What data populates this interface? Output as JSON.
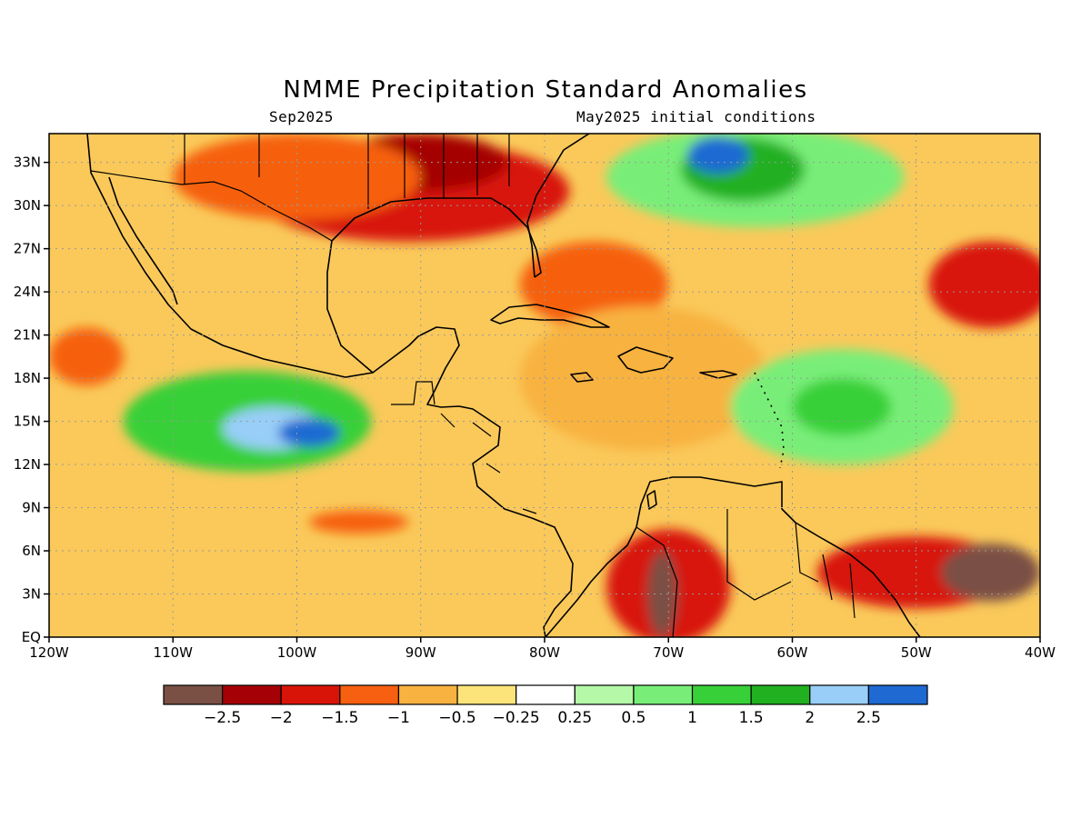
{
  "title": "NMME Precipitation Standard Anomalies",
  "subtitle_left": "Sep2025",
  "subtitle_right": "May2025 initial conditions",
  "map": {
    "lon_range": [
      -120,
      -40
    ],
    "lat_range": [
      0,
      35
    ],
    "lon_ticks": [
      {
        "value": -120,
        "label": "120W"
      },
      {
        "value": -110,
        "label": "110W"
      },
      {
        "value": -100,
        "label": "100W"
      },
      {
        "value": -90,
        "label": "90W"
      },
      {
        "value": -80,
        "label": "80W"
      },
      {
        "value": -70,
        "label": "70W"
      },
      {
        "value": -60,
        "label": "60W"
      },
      {
        "value": -50,
        "label": "50W"
      },
      {
        "value": -40,
        "label": "40W"
      }
    ],
    "lat_ticks": [
      {
        "value": 0,
        "label": "EQ"
      },
      {
        "value": 3,
        "label": "3N"
      },
      {
        "value": 6,
        "label": "6N"
      },
      {
        "value": 9,
        "label": "9N"
      },
      {
        "value": 12,
        "label": "12N"
      },
      {
        "value": 15,
        "label": "15N"
      },
      {
        "value": 18,
        "label": "18N"
      },
      {
        "value": 21,
        "label": "21N"
      },
      {
        "value": 24,
        "label": "24N"
      },
      {
        "value": 27,
        "label": "27N"
      },
      {
        "value": 30,
        "label": "30N"
      },
      {
        "value": 33,
        "label": "33N"
      }
    ],
    "grid": "dotted"
  },
  "colorbar": {
    "colors": [
      "#7a5044",
      "#a50005",
      "#d81408",
      "#f66010",
      "#f8b240",
      "#fce47a",
      "#ffffff",
      "#b4f8a8",
      "#78ee78",
      "#38d038",
      "#20b020",
      "#98cef8",
      "#1e6ad2"
    ],
    "labels": [
      "-2.5",
      "-2",
      "-1.5",
      "-1",
      "-0.5",
      "-0.25",
      "0.25",
      "0.5",
      "1",
      "1.5",
      "2",
      "2.5"
    ]
  },
  "regions": [
    {
      "name": "gulf-coast-dry",
      "color": "#d81408",
      "lon": -91,
      "lat": 31,
      "rx": 13,
      "ry": 3.5
    },
    {
      "name": "gulf-coast-core",
      "color": "#a50005",
      "lon": -90,
      "lat": 33,
      "rx": 7,
      "ry": 2
    },
    {
      "name": "sw-us-dry",
      "color": "#f66010",
      "lon": -100,
      "lat": 32,
      "rx": 10,
      "ry": 3
    },
    {
      "name": "bahamas-dry",
      "color": "#f66010",
      "lon": -76,
      "lat": 24.5,
      "rx": 6,
      "ry": 3
    },
    {
      "name": "caribbean-dry",
      "color": "#f8b240",
      "lon": -72,
      "lat": 18,
      "rx": 10,
      "ry": 5
    },
    {
      "name": "atlantic-wet-north",
      "color": "#78ee78",
      "lon": -63,
      "lat": 32,
      "rx": 12,
      "ry": 3.5
    },
    {
      "name": "atlantic-wet-core",
      "color": "#20b020",
      "lon": -64,
      "lat": 32.5,
      "rx": 5,
      "ry": 2.2
    },
    {
      "name": "atlantic-wet-max",
      "color": "#1e6ad2",
      "lon": -66,
      "lat": 33.5,
      "rx": 2.5,
      "ry": 1.3
    },
    {
      "name": "east-atlantic-dry",
      "color": "#d81408",
      "lon": -44,
      "lat": 24.5,
      "rx": 5,
      "ry": 3
    },
    {
      "name": "mid-atlantic-wet",
      "color": "#78ee78",
      "lon": -56,
      "lat": 16,
      "rx": 9,
      "ry": 4
    },
    {
      "name": "mid-atlantic-wet-core",
      "color": "#38d038",
      "lon": -56,
      "lat": 16,
      "rx": 4,
      "ry": 2
    },
    {
      "name": "pacific-wet",
      "color": "#38d038",
      "lon": -104,
      "lat": 15,
      "rx": 10,
      "ry": 3.5
    },
    {
      "name": "pacific-wet-core",
      "color": "#98cef8",
      "lon": -102,
      "lat": 14.5,
      "rx": 4,
      "ry": 1.5
    },
    {
      "name": "pacific-wet-max",
      "color": "#1e6ad2",
      "lon": -99,
      "lat": 14.2,
      "rx": 2.5,
      "ry": 1
    },
    {
      "name": "pacific-dry-west",
      "color": "#f66010",
      "lon": -117,
      "lat": 19.5,
      "rx": 3,
      "ry": 2
    },
    {
      "name": "pacific-band-dry",
      "color": "#f66010",
      "lon": -95,
      "lat": 8,
      "rx": 4,
      "ry": 0.8
    },
    {
      "name": "amazon-dry",
      "color": "#d81408",
      "lon": -70,
      "lat": 3.5,
      "rx": 5,
      "ry": 4
    },
    {
      "name": "amazon-core",
      "color": "#7a5044",
      "lon": -70.5,
      "lat": 3,
      "rx": 1.2,
      "ry": 3
    },
    {
      "name": "guyana-dry",
      "color": "#d81408",
      "lon": -50,
      "lat": 4.5,
      "rx": 8,
      "ry": 2.5
    },
    {
      "name": "guyana-core",
      "color": "#7a5044",
      "lon": -44,
      "lat": 4.5,
      "rx": 4,
      "ry": 2
    }
  ]
}
